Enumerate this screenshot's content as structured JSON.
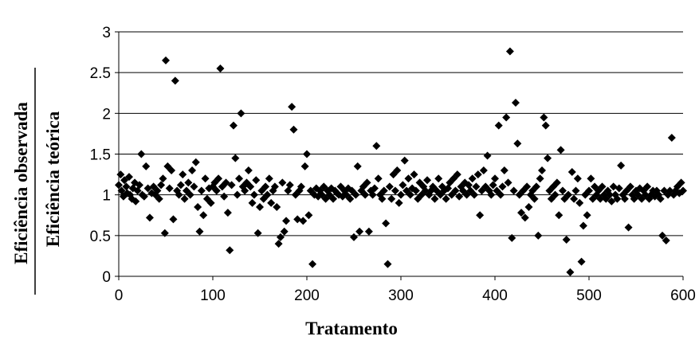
{
  "chart_data": {
    "type": "scatter",
    "title": "",
    "xlabel": "Tratamento",
    "ylabel_numerator": "Eficiência observada",
    "ylabel_denominator": "Eficiência teórica",
    "xlim": [
      0,
      600
    ],
    "ylim": [
      0,
      3
    ],
    "x_ticks": [
      "0",
      "100",
      "200",
      "300",
      "400",
      "500",
      "600"
    ],
    "y_ticks": [
      "0",
      "0.5",
      "1",
      "1.5",
      "2",
      "2.5",
      "3"
    ],
    "grid": "horizontal",
    "marker": "diamond",
    "marker_color": "#000000",
    "series": [
      {
        "name": "",
        "points": [
          [
            0,
            1.12
          ],
          [
            2,
            1.25
          ],
          [
            3,
            1.05
          ],
          [
            5,
            0.98
          ],
          [
            6,
            1.18
          ],
          [
            8,
            1.1
          ],
          [
            9,
            1.02
          ],
          [
            11,
            1.22
          ],
          [
            12,
            1.0
          ],
          [
            14,
            0.95
          ],
          [
            15,
            1.08
          ],
          [
            17,
            1.15
          ],
          [
            18,
            0.92
          ],
          [
            20,
            1.05
          ],
          [
            22,
            1.12
          ],
          [
            24,
            1.5
          ],
          [
            25,
            1.0
          ],
          [
            27,
            0.98
          ],
          [
            29,
            1.35
          ],
          [
            31,
            1.08
          ],
          [
            33,
            0.72
          ],
          [
            35,
            1.02
          ],
          [
            37,
            1.1
          ],
          [
            39,
            1.0
          ],
          [
            41,
            1.05
          ],
          [
            43,
            0.95
          ],
          [
            45,
            1.12
          ],
          [
            47,
            1.2
          ],
          [
            49,
            0.53
          ],
          [
            50,
            2.65
          ],
          [
            52,
            1.35
          ],
          [
            54,
            1.08
          ],
          [
            56,
            1.3
          ],
          [
            58,
            0.7
          ],
          [
            60,
            2.4
          ],
          [
            62,
            1.05
          ],
          [
            64,
            1.0
          ],
          [
            66,
            1.12
          ],
          [
            68,
            1.25
          ],
          [
            70,
            0.95
          ],
          [
            72,
            1.05
          ],
          [
            74,
            1.15
          ],
          [
            76,
            1.0
          ],
          [
            78,
            1.3
          ],
          [
            80,
            1.1
          ],
          [
            82,
            1.4
          ],
          [
            84,
            0.85
          ],
          [
            86,
            0.55
          ],
          [
            88,
            1.05
          ],
          [
            90,
            0.75
          ],
          [
            92,
            1.2
          ],
          [
            94,
            0.95
          ],
          [
            96,
            1.08
          ],
          [
            98,
            0.9
          ],
          [
            100,
            1.1
          ],
          [
            102,
            1.15
          ],
          [
            104,
            1.05
          ],
          [
            106,
            1.2
          ],
          [
            108,
            2.55
          ],
          [
            110,
            1.1
          ],
          [
            112,
            0.98
          ],
          [
            114,
            1.15
          ],
          [
            116,
            0.78
          ],
          [
            118,
            0.32
          ],
          [
            120,
            1.12
          ],
          [
            122,
            1.85
          ],
          [
            124,
            1.45
          ],
          [
            126,
            1.0
          ],
          [
            128,
            1.2
          ],
          [
            130,
            2.0
          ],
          [
            132,
            1.1
          ],
          [
            134,
            1.05
          ],
          [
            136,
            1.15
          ],
          [
            138,
            1.3
          ],
          [
            140,
            1.1
          ],
          [
            142,
            0.9
          ],
          [
            144,
            1.0
          ],
          [
            146,
            1.18
          ],
          [
            148,
            0.53
          ],
          [
            150,
            0.85
          ],
          [
            152,
            1.05
          ],
          [
            154,
            0.95
          ],
          [
            156,
            1.1
          ],
          [
            158,
            1.0
          ],
          [
            160,
            1.2
          ],
          [
            162,
            0.9
          ],
          [
            164,
            1.05
          ],
          [
            166,
            1.1
          ],
          [
            168,
            0.85
          ],
          [
            170,
            0.4
          ],
          [
            172,
            0.48
          ],
          [
            174,
            1.15
          ],
          [
            176,
            0.55
          ],
          [
            178,
            0.68
          ],
          [
            180,
            1.05
          ],
          [
            182,
            1.12
          ],
          [
            184,
            2.08
          ],
          [
            186,
            1.8
          ],
          [
            188,
            1.0
          ],
          [
            190,
            0.7
          ],
          [
            192,
            1.05
          ],
          [
            194,
            1.1
          ],
          [
            196,
            0.68
          ],
          [
            198,
            1.35
          ],
          [
            200,
            1.5
          ],
          [
            202,
            0.75
          ],
          [
            204,
            1.05
          ],
          [
            206,
            0.15
          ],
          [
            208,
            1.0
          ],
          [
            210,
            1.08
          ],
          [
            212,
            0.98
          ],
          [
            214,
            1.05
          ],
          [
            216,
            1.0
          ],
          [
            218,
            1.1
          ],
          [
            220,
            0.95
          ],
          [
            222,
            1.05
          ],
          [
            224,
            1.0
          ],
          [
            226,
            1.08
          ],
          [
            228,
            0.95
          ],
          [
            230,
            1.05
          ],
          [
            232,
            1.02
          ],
          [
            234,
            1.0
          ],
          [
            236,
            1.1
          ],
          [
            238,
            0.98
          ],
          [
            240,
            1.05
          ],
          [
            242,
            1.0
          ],
          [
            244,
            1.08
          ],
          [
            246,
            0.95
          ],
          [
            248,
            1.05
          ],
          [
            250,
            0.48
          ],
          [
            252,
            1.0
          ],
          [
            254,
            1.35
          ],
          [
            256,
            0.55
          ],
          [
            258,
            1.05
          ],
          [
            260,
            1.1
          ],
          [
            262,
            1.0
          ],
          [
            264,
            1.15
          ],
          [
            266,
            0.55
          ],
          [
            268,
            1.05
          ],
          [
            270,
            1.0
          ],
          [
            272,
            1.08
          ],
          [
            274,
            1.6
          ],
          [
            276,
            1.2
          ],
          [
            278,
            1.0
          ],
          [
            280,
            0.95
          ],
          [
            282,
            1.05
          ],
          [
            284,
            0.65
          ],
          [
            286,
            0.15
          ],
          [
            288,
            1.1
          ],
          [
            290,
            0.95
          ],
          [
            292,
            1.25
          ],
          [
            294,
            1.05
          ],
          [
            296,
            1.3
          ],
          [
            298,
            0.9
          ],
          [
            300,
            1.0
          ],
          [
            302,
            1.12
          ],
          [
            304,
            1.42
          ],
          [
            306,
            1.05
          ],
          [
            308,
            1.2
          ],
          [
            310,
            1.0
          ],
          [
            312,
            1.08
          ],
          [
            314,
            1.25
          ],
          [
            316,
            1.05
          ],
          [
            318,
            0.95
          ],
          [
            320,
            1.15
          ],
          [
            322,
            1.0
          ],
          [
            324,
            1.1
          ],
          [
            326,
            1.05
          ],
          [
            328,
            1.18
          ],
          [
            330,
            1.0
          ],
          [
            332,
            1.05
          ],
          [
            334,
            1.1
          ],
          [
            336,
            0.95
          ],
          [
            338,
            1.05
          ],
          [
            340,
            1.2
          ],
          [
            342,
            1.0
          ],
          [
            344,
            1.1
          ],
          [
            346,
            1.05
          ],
          [
            348,
            0.95
          ],
          [
            350,
            1.08
          ],
          [
            352,
            1.15
          ],
          [
            354,
            1.0
          ],
          [
            356,
            1.2
          ],
          [
            358,
            1.05
          ],
          [
            360,
            1.25
          ],
          [
            362,
            0.98
          ],
          [
            364,
            1.1
          ],
          [
            366,
            1.05
          ],
          [
            368,
            1.15
          ],
          [
            370,
            1.0
          ],
          [
            372,
            1.12
          ],
          [
            374,
            1.05
          ],
          [
            376,
            1.2
          ],
          [
            378,
            1.0
          ],
          [
            380,
            1.1
          ],
          [
            382,
            1.25
          ],
          [
            384,
            0.75
          ],
          [
            386,
            1.05
          ],
          [
            388,
            1.3
          ],
          [
            390,
            1.1
          ],
          [
            392,
            1.48
          ],
          [
            394,
            1.05
          ],
          [
            396,
            1.0
          ],
          [
            398,
            1.12
          ],
          [
            400,
            1.2
          ],
          [
            402,
            1.05
          ],
          [
            404,
            1.85
          ],
          [
            406,
            1.0
          ],
          [
            408,
            1.1
          ],
          [
            410,
            1.3
          ],
          [
            412,
            1.95
          ],
          [
            414,
            1.15
          ],
          [
            416,
            2.76
          ],
          [
            418,
            0.47
          ],
          [
            420,
            1.05
          ],
          [
            422,
            2.13
          ],
          [
            424,
            1.63
          ],
          [
            426,
            1.0
          ],
          [
            428,
            0.78
          ],
          [
            430,
            1.05
          ],
          [
            432,
            0.72
          ],
          [
            434,
            1.1
          ],
          [
            436,
            0.85
          ],
          [
            438,
            1.0
          ],
          [
            440,
            1.05
          ],
          [
            442,
            0.95
          ],
          [
            444,
            1.1
          ],
          [
            446,
            0.5
          ],
          [
            448,
            1.2
          ],
          [
            450,
            1.3
          ],
          [
            452,
            1.95
          ],
          [
            454,
            1.85
          ],
          [
            456,
            1.45
          ],
          [
            458,
            1.05
          ],
          [
            460,
            0.95
          ],
          [
            462,
            1.1
          ],
          [
            464,
            1.0
          ],
          [
            466,
            1.15
          ],
          [
            468,
            0.75
          ],
          [
            470,
            1.55
          ],
          [
            472,
            1.05
          ],
          [
            474,
            0.95
          ],
          [
            476,
            0.45
          ],
          [
            478,
            1.0
          ],
          [
            480,
            0.05
          ],
          [
            482,
            1.28
          ],
          [
            484,
            0.95
          ],
          [
            486,
            1.05
          ],
          [
            488,
            1.2
          ],
          [
            490,
            0.9
          ],
          [
            492,
            0.18
          ],
          [
            494,
            0.62
          ],
          [
            496,
            1.0
          ],
          [
            498,
            0.75
          ],
          [
            500,
            1.05
          ],
          [
            502,
            1.2
          ],
          [
            504,
            0.95
          ],
          [
            506,
            1.1
          ],
          [
            508,
            1.0
          ],
          [
            510,
            1.05
          ],
          [
            512,
            0.95
          ],
          [
            514,
            1.1
          ],
          [
            516,
            1.0
          ],
          [
            518,
            0.95
          ],
          [
            520,
            1.05
          ],
          [
            522,
            1.0
          ],
          [
            524,
            0.92
          ],
          [
            526,
            1.1
          ],
          [
            528,
            1.0
          ],
          [
            530,
            0.95
          ],
          [
            532,
            1.08
          ],
          [
            534,
            1.36
          ],
          [
            536,
            1.0
          ],
          [
            538,
            0.95
          ],
          [
            540,
            1.05
          ],
          [
            542,
            0.6
          ],
          [
            544,
            1.1
          ],
          [
            546,
            1.0
          ],
          [
            548,
            0.95
          ],
          [
            550,
            1.05
          ],
          [
            552,
            1.0
          ],
          [
            554,
            1.08
          ],
          [
            556,
            0.95
          ],
          [
            558,
            1.05
          ],
          [
            560,
            1.0
          ],
          [
            562,
            1.1
          ],
          [
            564,
            0.95
          ],
          [
            566,
            1.0
          ],
          [
            568,
            1.05
          ],
          [
            570,
            0.98
          ],
          [
            572,
            1.05
          ],
          [
            574,
            1.0
          ],
          [
            576,
            0.95
          ],
          [
            578,
            0.5
          ],
          [
            580,
            1.05
          ],
          [
            582,
            0.44
          ],
          [
            584,
            1.0
          ],
          [
            586,
            1.05
          ],
          [
            588,
            1.7
          ],
          [
            590,
            1.0
          ],
          [
            592,
            1.05
          ],
          [
            594,
            1.1
          ],
          [
            596,
            1.02
          ],
          [
            598,
            1.15
          ],
          [
            600,
            1.05
          ]
        ]
      }
    ]
  }
}
